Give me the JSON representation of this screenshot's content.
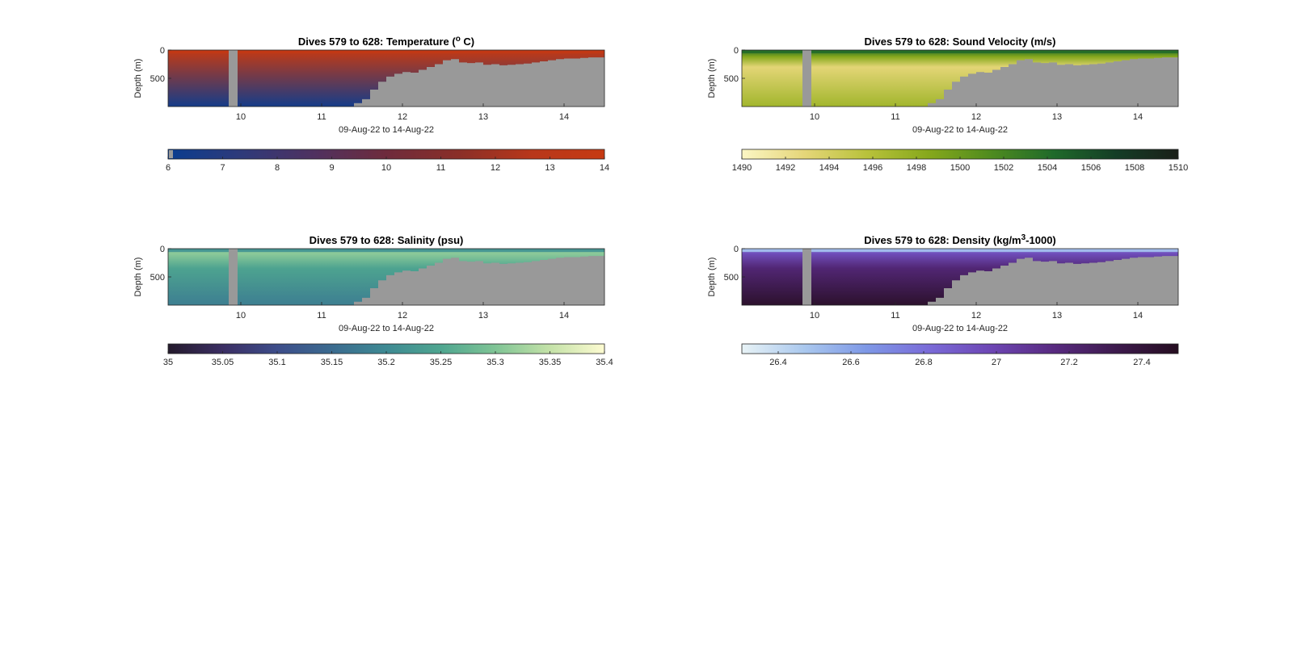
{
  "panels": [
    {
      "title_parts": [
        "Dives 579 to 628: Temperature (",
        "o",
        " C)"
      ],
      "title_mode": [
        "n",
        "sup",
        "n"
      ],
      "ylabel": "Depth (m)",
      "xlabel": "09-Aug-22 to 14-Aug-22",
      "colorbar_ticks": [
        "6",
        "7",
        "8",
        "9",
        "10",
        "11",
        "12",
        "13",
        "14"
      ],
      "colorbar_range": [
        6,
        14
      ]
    },
    {
      "title_parts": [
        "Dives 579 to 628: Sound Velocity (m/s)"
      ],
      "title_mode": [
        "n"
      ],
      "ylabel": "Depth (m)",
      "xlabel": "09-Aug-22 to 14-Aug-22",
      "colorbar_ticks": [
        "1490",
        "1492",
        "1494",
        "1496",
        "1498",
        "1500",
        "1502",
        "1504",
        "1506",
        "1508",
        "1510"
      ],
      "colorbar_range": [
        1490,
        1510
      ]
    },
    {
      "title_parts": [
        "Dives 579 to 628: Salinity (psu)"
      ],
      "title_mode": [
        "n"
      ],
      "ylabel": "Depth (m)",
      "xlabel": "09-Aug-22 to 14-Aug-22",
      "colorbar_ticks": [
        "35",
        "35.05",
        "35.1",
        "35.15",
        "35.2",
        "35.25",
        "35.3",
        "35.35",
        "35.4"
      ],
      "colorbar_range": [
        35,
        35.4
      ]
    },
    {
      "title_parts": [
        "Dives 579 to 628: Density (kg/m",
        "3",
        "-1000)"
      ],
      "title_mode": [
        "n",
        "sup",
        "n"
      ],
      "ylabel": "Depth (m)",
      "xlabel": "09-Aug-22 to 14-Aug-22",
      "colorbar_ticks": [
        "26.4",
        "26.6",
        "26.8",
        "27",
        "27.2",
        "27.4"
      ],
      "colorbar_range": [
        26.3,
        27.5
      ]
    }
  ],
  "colors": {
    "nodata": "#999999",
    "temperature": [
      "#0a3d8f",
      "#2e3a7a",
      "#4f3160",
      "#6e2b3c",
      "#8a2f28",
      "#b8371a",
      "#c63a12"
    ],
    "sound_velocity": [
      "#fbf6c4",
      "#e5d679",
      "#b9c23b",
      "#86a81c",
      "#4f8b1f",
      "#1f6a2a",
      "#143d26",
      "#1a1f18"
    ],
    "salinity": [
      "#241a2c",
      "#3b2e63",
      "#3d4d8a",
      "#3b6b8f",
      "#3e8a93",
      "#4fa690",
      "#7fc495",
      "#c4e2a8",
      "#fdfbd1"
    ],
    "density": [
      "#e8f3f6",
      "#aac8ee",
      "#7e98e6",
      "#7a6bd8",
      "#6d46b4",
      "#582a80",
      "#3d1a4d",
      "#250d20"
    ]
  },
  "chart_data": [
    {
      "type": "heatmap",
      "title": "Dives 579 to 628: Temperature (o C)",
      "variable": "Temperature",
      "xlabel": "09-Aug-22 to 14-Aug-22",
      "ylabel": "Depth (m)",
      "x_range": [
        9.1,
        14.5
      ],
      "x_ticks": [
        10,
        11,
        12,
        13,
        14
      ],
      "y_range": [
        0,
        1000
      ],
      "y_ticks": [
        0,
        500
      ],
      "y_reversed": true,
      "colorbar": {
        "min": 6,
        "max": 14,
        "ticks": [
          6,
          7,
          8,
          9,
          10,
          11,
          12,
          13,
          14
        ]
      },
      "field": {
        "surface_value": 13.6,
        "bottom_value": 6.4,
        "description_free": true
      }
    },
    {
      "type": "heatmap",
      "title": "Dives 579 to 628: Sound Velocity (m/s)",
      "variable": "Sound Velocity",
      "xlabel": "09-Aug-22 to 14-Aug-22",
      "ylabel": "Depth (m)",
      "x_range": [
        9.1,
        14.5
      ],
      "x_ticks": [
        10,
        11,
        12,
        13,
        14
      ],
      "y_range": [
        0,
        1000
      ],
      "y_ticks": [
        0,
        500
      ],
      "y_reversed": true,
      "colorbar": {
        "min": 1490,
        "max": 1510,
        "ticks": [
          1490,
          1492,
          1494,
          1496,
          1498,
          1500,
          1502,
          1504,
          1506,
          1508,
          1510
        ]
      },
      "field": {
        "surface_value": 1504,
        "mid_value": 1493,
        "bottom_value": 1497
      }
    },
    {
      "type": "heatmap",
      "title": "Dives 579 to 628: Salinity (psu)",
      "variable": "Salinity",
      "xlabel": "09-Aug-22 to 14-Aug-22",
      "ylabel": "Depth (m)",
      "x_range": [
        9.1,
        14.5
      ],
      "x_ticks": [
        10,
        11,
        12,
        13,
        14
      ],
      "y_range": [
        0,
        1000
      ],
      "y_ticks": [
        0,
        500
      ],
      "y_reversed": true,
      "colorbar": {
        "min": 35,
        "max": 35.4,
        "ticks": [
          35,
          35.05,
          35.1,
          35.15,
          35.2,
          35.25,
          35.3,
          35.35,
          35.4
        ]
      },
      "field": {
        "surface_value": 35.22,
        "upper_value": 35.31,
        "bottom_value": 35.18
      }
    },
    {
      "type": "heatmap",
      "title": "Dives 579 to 628: Density (kg/m3-1000)",
      "variable": "Density",
      "xlabel": "09-Aug-22 to 14-Aug-22",
      "ylabel": "Depth (m)",
      "x_range": [
        9.1,
        14.5
      ],
      "x_ticks": [
        10,
        11,
        12,
        13,
        14
      ],
      "y_range": [
        0,
        1000
      ],
      "y_reversed": true,
      "y_ticks": [
        0,
        500
      ],
      "colorbar": {
        "min": 26.3,
        "max": 27.5,
        "ticks": [
          26.4,
          26.6,
          26.8,
          27,
          27.2,
          27.4
        ]
      },
      "field": {
        "surface_value": 26.5,
        "upper_value": 26.95,
        "bottom_value": 27.45
      }
    }
  ],
  "data_gap": {
    "x_range": [
      9.85,
      9.96
    ]
  },
  "seafloor_depth_profile": {
    "x": [
      9.1,
      11.3,
      11.4,
      11.5,
      11.6,
      11.7,
      11.8,
      11.9,
      12.0,
      12.1,
      12.2,
      12.3,
      12.4,
      12.5,
      12.6,
      12.7,
      12.8,
      12.9,
      13.0,
      13.1,
      13.2,
      13.3,
      13.4,
      13.5,
      13.6,
      13.7,
      13.8,
      13.9,
      14.0,
      14.1,
      14.2,
      14.3,
      14.5
    ],
    "depth_m": [
      1000,
      1000,
      940,
      870,
      700,
      560,
      470,
      420,
      390,
      400,
      350,
      300,
      250,
      180,
      160,
      220,
      230,
      220,
      260,
      250,
      270,
      260,
      250,
      240,
      220,
      200,
      180,
      160,
      150,
      150,
      140,
      130,
      120
    ]
  }
}
